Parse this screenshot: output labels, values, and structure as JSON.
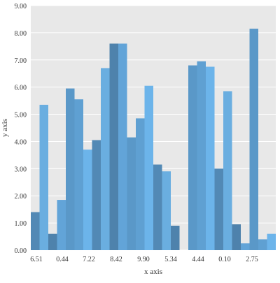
{
  "chart_data": {
    "type": "bar",
    "xlabel": "x axis",
    "ylabel": "y axis",
    "ylim": [
      0,
      9
    ],
    "y_ticks": [
      "0.00",
      "1.00",
      "2.00",
      "3.00",
      "4.00",
      "5.00",
      "6.00",
      "7.00",
      "8.00",
      "9.00"
    ],
    "x_ticks": [
      "6.51",
      "0.44",
      "7.22",
      "8.42",
      "9.90",
      "5.34",
      "4.44",
      "0.10",
      "2.75"
    ],
    "grid": true,
    "background_color": "#e8e8e8",
    "gridline_color": "#ffffff",
    "bar_colors": [
      "#5289b5",
      "#6aaee0",
      "#4e82ac",
      "#62a4d8",
      "#5a98c8",
      "#5fa0d2",
      "#6cb4ea"
    ],
    "values": [
      1.4,
      5.35,
      0.6,
      1.85,
      5.95,
      5.55,
      3.7,
      4.05,
      6.7,
      7.6,
      7.6,
      4.15,
      4.85,
      6.05,
      3.15,
      2.9,
      0.9,
      0,
      6.8,
      6.95,
      6.75,
      3.0,
      5.85,
      0.95,
      0.25,
      8.15,
      0.4,
      0.6
    ]
  }
}
